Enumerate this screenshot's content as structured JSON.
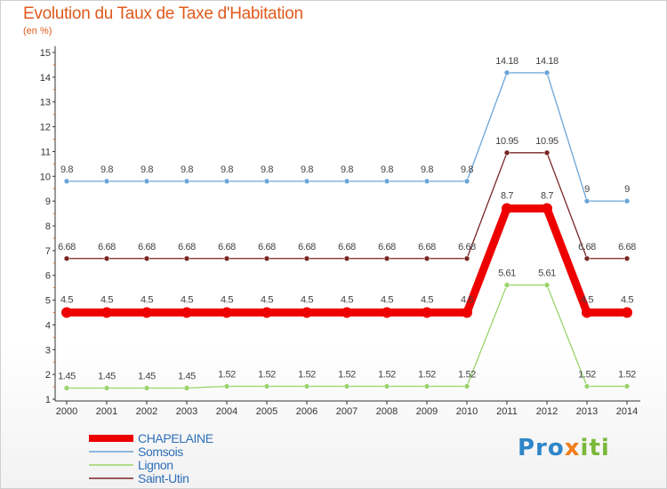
{
  "header": {
    "title": "Evolution du Taux de Taxe d'Habitation",
    "subtitle": "(en %)"
  },
  "logo": {
    "text": "Proxiti"
  },
  "chart_data": {
    "type": "line",
    "x": [
      "2000",
      "2001",
      "2002",
      "2003",
      "2004",
      "2005",
      "2006",
      "2007",
      "2008",
      "2009",
      "2010",
      "2011",
      "2012",
      "2013",
      "2014"
    ],
    "ylim": [
      1,
      15
    ],
    "yticks": [
      1,
      2,
      3,
      4,
      5,
      6,
      7,
      8,
      9,
      10,
      11,
      12,
      13,
      14,
      15
    ],
    "grid": false,
    "legend_position": "bottom-left",
    "series": [
      {
        "name": "Somsois",
        "color": "#6aa4d8",
        "values": [
          9.8,
          9.8,
          9.8,
          9.8,
          9.8,
          9.8,
          9.8,
          9.8,
          9.8,
          9.8,
          9.8,
          14.18,
          14.18,
          9,
          9
        ],
        "labels": [
          "9.8",
          "9.8",
          "9.8",
          "9.8",
          "9.8",
          "9.8",
          "9.8",
          "9.8",
          "9.8",
          "9.8",
          "9.8",
          "14.18",
          "14.18",
          "9",
          "9"
        ]
      },
      {
        "name": "Saint-Utin",
        "color": "#7a2424",
        "values": [
          6.68,
          6.68,
          6.68,
          6.68,
          6.68,
          6.68,
          6.68,
          6.68,
          6.68,
          6.68,
          6.68,
          10.95,
          10.95,
          6.68,
          6.68
        ],
        "labels": [
          "6.68",
          "6.68",
          "6.68",
          "6.68",
          "6.68",
          "6.68",
          "6.68",
          "6.68",
          "6.68",
          "6.68",
          "6.68",
          "10.95",
          "10.95",
          "6.68",
          "6.68"
        ]
      },
      {
        "name": "Lignon",
        "color": "#9ad36a",
        "values": [
          1.45,
          1.45,
          1.45,
          1.45,
          1.52,
          1.52,
          1.52,
          1.52,
          1.52,
          1.52,
          1.52,
          5.61,
          5.61,
          1.52,
          1.52
        ],
        "labels": [
          "1.45",
          "1.45",
          "1.45",
          "1.45",
          "1.52",
          "1.52",
          "1.52",
          "1.52",
          "1.52",
          "1.52",
          "1.52",
          "5.61",
          "5.61",
          "1.52",
          "1.52"
        ]
      },
      {
        "name": "CHAPELAINE",
        "color": "#ee0000",
        "highlight": true,
        "values": [
          4.5,
          4.5,
          4.5,
          4.5,
          4.5,
          4.5,
          4.5,
          4.5,
          4.5,
          4.5,
          4.5,
          8.7,
          8.7,
          4.5,
          4.5
        ],
        "labels": [
          "4.5",
          "4.5",
          "4.5",
          "4.5",
          "4.5",
          "4.5",
          "4.5",
          "4.5",
          "4.5",
          "4.5",
          "4.5",
          "8.7",
          "8.7",
          "4.5",
          "4.5"
        ]
      }
    ],
    "legend_order": [
      "CHAPELAINE",
      "Somsois",
      "Lignon",
      "Saint-Utin"
    ]
  }
}
